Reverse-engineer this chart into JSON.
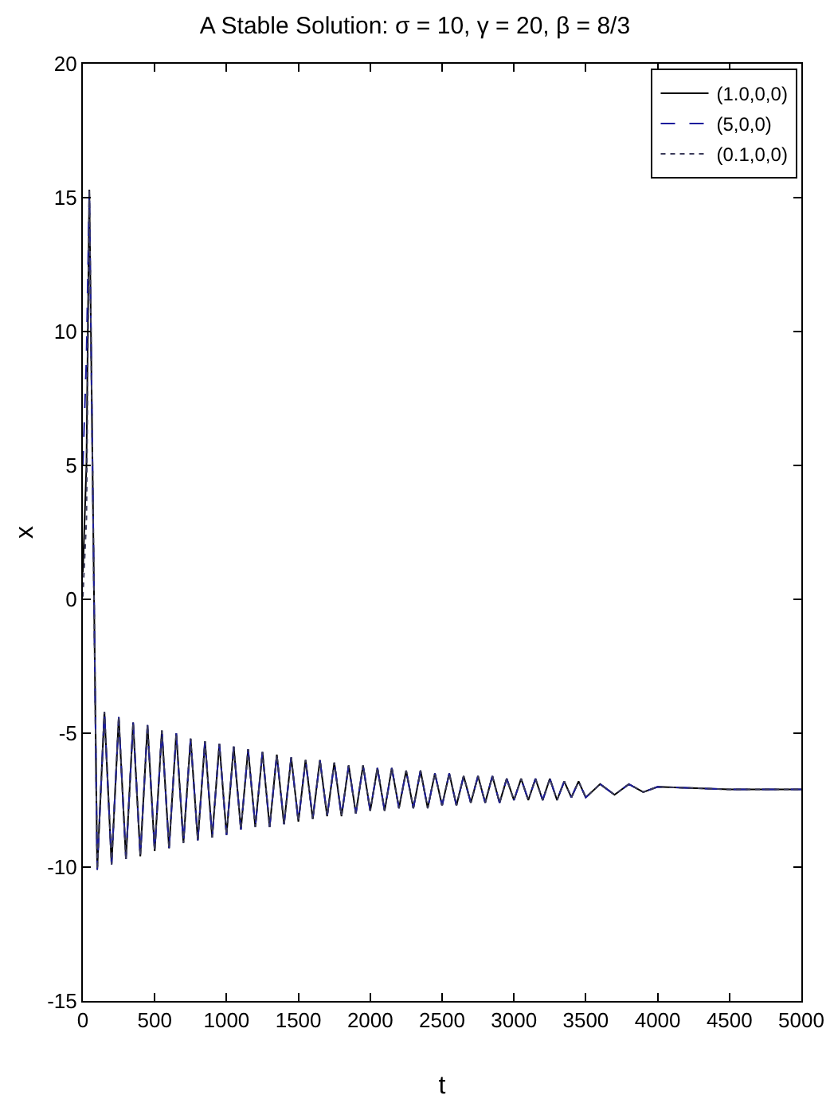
{
  "chart_data": {
    "type": "line",
    "title": "A Stable Solution: σ = 10, γ = 20, β = 8/3",
    "xlabel": "t",
    "ylabel": "x",
    "x": [
      0,
      25,
      45,
      100,
      150,
      200,
      250,
      300,
      350,
      400,
      450,
      500,
      550,
      600,
      650,
      700,
      750,
      800,
      850,
      900,
      950,
      1000,
      1050,
      1100,
      1150,
      1200,
      1250,
      1300,
      1350,
      1400,
      1450,
      1500,
      1550,
      1600,
      1650,
      1700,
      1750,
      1800,
      1850,
      1900,
      1950,
      2000,
      2050,
      2100,
      2150,
      2200,
      2250,
      2300,
      2350,
      2400,
      2450,
      2500,
      2550,
      2600,
      2650,
      2700,
      2750,
      2800,
      2850,
      2900,
      2950,
      3000,
      3050,
      3100,
      3150,
      3200,
      3250,
      3300,
      3350,
      3400,
      3450,
      3500,
      3600,
      3700,
      3800,
      3900,
      4000,
      4500,
      5000
    ],
    "series": [
      {
        "name": "(1.0,0,0)",
        "color": "#000000",
        "line_style": "solid",
        "values": [
          1.0,
          5,
          15.3,
          -10.1,
          -4.2,
          -9.9,
          -4.4,
          -9.7,
          -4.6,
          -9.6,
          -4.7,
          -9.4,
          -4.9,
          -9.3,
          -5.0,
          -9.1,
          -5.2,
          -9.0,
          -5.3,
          -8.9,
          -5.4,
          -8.8,
          -5.5,
          -8.6,
          -5.6,
          -8.5,
          -5.7,
          -8.5,
          -5.8,
          -8.4,
          -5.9,
          -8.3,
          -6.0,
          -8.2,
          -6.0,
          -8.1,
          -6.1,
          -8.1,
          -6.2,
          -8.0,
          -6.2,
          -7.9,
          -6.3,
          -7.9,
          -6.3,
          -7.8,
          -6.4,
          -7.8,
          -6.4,
          -7.8,
          -6.5,
          -7.7,
          -6.5,
          -7.7,
          -6.6,
          -7.6,
          -6.6,
          -7.6,
          -6.6,
          -7.6,
          -6.7,
          -7.5,
          -6.7,
          -7.5,
          -6.7,
          -7.5,
          -6.7,
          -7.5,
          -6.8,
          -7.4,
          -6.8,
          -7.4,
          -6.9,
          -7.3,
          -6.9,
          -7.2,
          -7.0,
          -7.1,
          -7.1
        ]
      },
      {
        "name": "(5,0,0)",
        "color": "#1c1c9c",
        "line_style": "dashed",
        "values": [
          5,
          9,
          15.3,
          -10.1,
          -4.2,
          -9.9,
          -4.4,
          -9.7,
          -4.6,
          -9.6,
          -4.7,
          -9.4,
          -4.9,
          -9.3,
          -5.0,
          -9.1,
          -5.2,
          -9.0,
          -5.3,
          -8.9,
          -5.4,
          -8.8,
          -5.5,
          -8.6,
          -5.6,
          -8.5,
          -5.7,
          -8.5,
          -5.8,
          -8.4,
          -5.9,
          -8.3,
          -6.0,
          -8.2,
          -6.0,
          -8.1,
          -6.1,
          -8.1,
          -6.2,
          -8.0,
          -6.2,
          -7.9,
          -6.3,
          -7.9,
          -6.3,
          -7.8,
          -6.4,
          -7.8,
          -6.4,
          -7.8,
          -6.5,
          -7.7,
          -6.5,
          -7.7,
          -6.6,
          -7.6,
          -6.6,
          -7.6,
          -6.6,
          -7.6,
          -6.7,
          -7.5,
          -6.7,
          -7.5,
          -6.7,
          -7.5,
          -6.7,
          -7.5,
          -6.8,
          -7.4,
          -6.8,
          -7.4,
          -6.9,
          -7.3,
          -6.9,
          -7.2,
          -7.0,
          -7.1,
          -7.1
        ]
      },
      {
        "name": "(0.1,0,0)",
        "color": "#3a3a5a",
        "line_style": "dotted",
        "values": [
          0.1,
          3,
          15.3,
          -10.1,
          -4.2,
          -9.9,
          -4.4,
          -9.7,
          -4.6,
          -9.6,
          -4.7,
          -9.4,
          -4.9,
          -9.3,
          -5.0,
          -9.1,
          -5.2,
          -9.0,
          -5.3,
          -8.9,
          -5.4,
          -8.8,
          -5.5,
          -8.6,
          -5.6,
          -8.5,
          -5.7,
          -8.5,
          -5.8,
          -8.4,
          -5.9,
          -8.3,
          -6.0,
          -8.2,
          -6.0,
          -8.1,
          -6.1,
          -8.1,
          -6.2,
          -8.0,
          -6.2,
          -7.9,
          -6.3,
          -7.9,
          -6.3,
          -7.8,
          -6.4,
          -7.8,
          -6.4,
          -7.8,
          -6.5,
          -7.7,
          -6.5,
          -7.7,
          -6.6,
          -7.6,
          -6.6,
          -7.6,
          -6.6,
          -7.6,
          -6.7,
          -7.5,
          -6.7,
          -7.5,
          -6.7,
          -7.5,
          -6.7,
          -7.5,
          -6.8,
          -7.4,
          -6.8,
          -7.4,
          -6.9,
          -7.3,
          -6.9,
          -7.2,
          -7.0,
          -7.1,
          -7.1
        ]
      }
    ],
    "xlim": [
      0,
      5000
    ],
    "xticks": [
      0,
      500,
      1000,
      1500,
      2000,
      2500,
      3000,
      3500,
      4000,
      4500,
      5000
    ],
    "ylim": [
      -15,
      20
    ],
    "yticks": [
      -15,
      -10,
      -5,
      0,
      5,
      10,
      15,
      20
    ],
    "grid": false,
    "legend": "top right",
    "marker": "none"
  }
}
